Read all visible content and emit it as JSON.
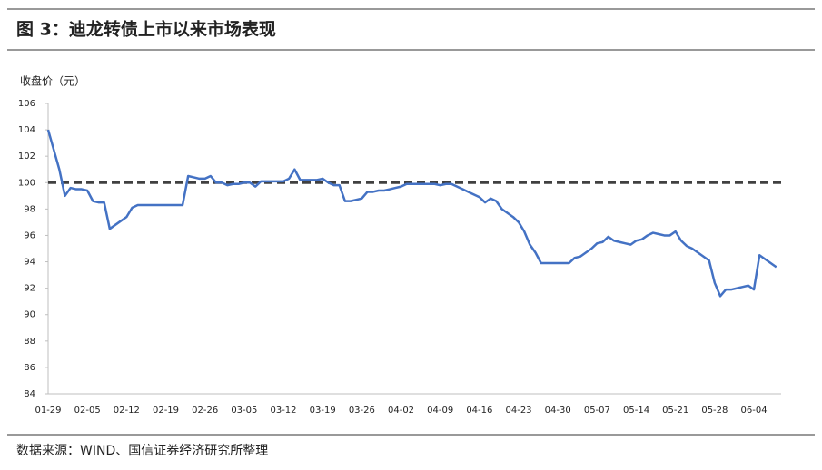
{
  "chart_data": {
    "type": "line",
    "title": "图 3：迪龙转债上市以来市场表现",
    "y_label": "收盘价（元）",
    "source": "数据来源：WIND、国信证券经济研究所整理",
    "categories": [
      "01-29",
      null,
      null,
      null,
      null,
      null,
      null,
      "02-05",
      null,
      null,
      null,
      null,
      null,
      null,
      "02-12",
      null,
      null,
      null,
      null,
      null,
      null,
      "02-19",
      null,
      null,
      null,
      null,
      null,
      null,
      "02-26",
      null,
      null,
      null,
      null,
      null,
      null,
      "03-05",
      null,
      null,
      null,
      null,
      null,
      null,
      "03-12",
      null,
      null,
      null,
      null,
      null,
      null,
      "03-19",
      null,
      null,
      null,
      null,
      null,
      null,
      "03-26",
      null,
      null,
      null,
      null,
      null,
      null,
      "04-02",
      null,
      null,
      null,
      null,
      null,
      null,
      "04-09",
      null,
      null,
      null,
      null,
      null,
      null,
      "04-16",
      null,
      null,
      null,
      null,
      null,
      null,
      "04-23",
      null,
      null,
      null,
      null,
      null,
      null,
      "04-30",
      null,
      null,
      null,
      null,
      null,
      null,
      "05-07",
      null,
      null,
      null,
      null,
      null,
      null,
      "05-14",
      null,
      null,
      null,
      null,
      null,
      null,
      "05-21",
      null,
      null,
      null,
      null,
      null,
      null,
      "05-28",
      null,
      null,
      null,
      null,
      null,
      null,
      "06-04",
      null,
      null,
      null,
      null
    ],
    "values": [
      104.0,
      102.5,
      101.0,
      99.0,
      99.6,
      99.5,
      99.5,
      99.4,
      98.6,
      98.5,
      98.5,
      96.5,
      96.8,
      97.1,
      97.4,
      98.1,
      98.3,
      98.3,
      98.3,
      98.3,
      98.3,
      98.3,
      98.3,
      98.3,
      98.3,
      100.5,
      100.4,
      100.3,
      100.3,
      100.5,
      100.0,
      100.0,
      99.8,
      99.9,
      99.9,
      100.0,
      100.0,
      99.7,
      100.1,
      100.1,
      100.1,
      100.1,
      100.1,
      100.3,
      101.0,
      100.2,
      100.2,
      100.2,
      100.2,
      100.3,
      100.0,
      99.8,
      99.8,
      98.6,
      98.6,
      98.7,
      98.8,
      99.3,
      99.3,
      99.4,
      99.4,
      99.5,
      99.6,
      99.7,
      99.9,
      99.9,
      99.9,
      99.9,
      99.9,
      99.9,
      99.8,
      99.9,
      99.9,
      99.7,
      99.5,
      99.3,
      99.1,
      98.9,
      98.5,
      98.8,
      98.6,
      98.0,
      97.7,
      97.4,
      97.0,
      96.3,
      95.3,
      94.7,
      93.9,
      93.9,
      93.9,
      93.9,
      93.9,
      93.9,
      94.3,
      94.4,
      94.7,
      95.0,
      95.4,
      95.5,
      95.9,
      95.6,
      95.5,
      95.4,
      95.3,
      95.6,
      95.7,
      96.0,
      96.2,
      96.1,
      96.0,
      96.0,
      96.3,
      95.6,
      95.2,
      95.0,
      94.7,
      94.4,
      94.1,
      92.4,
      91.4,
      91.9,
      91.9,
      92.0,
      92.1,
      92.2,
      91.9,
      94.5,
      94.2,
      93.9,
      93.6
    ],
    "color": "#4472c4",
    "reference_line": 100,
    "reference_color": "#404040",
    "ylim": [
      84,
      106
    ],
    "yticks": [
      84,
      86,
      88,
      90,
      92,
      94,
      96,
      98,
      100,
      102,
      104,
      106
    ]
  }
}
